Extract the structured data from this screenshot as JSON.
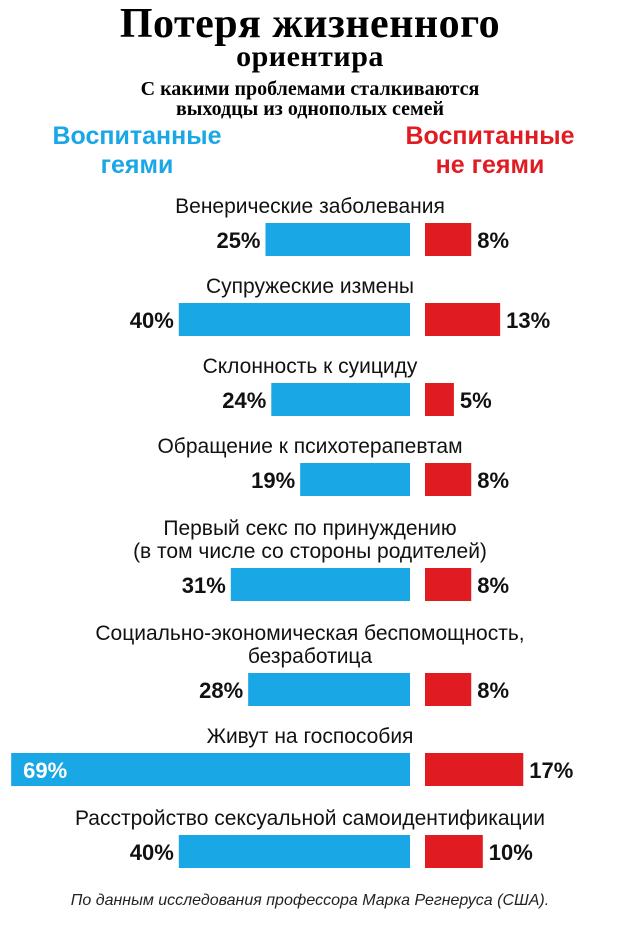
{
  "title": {
    "line1": "Потеря жизненного",
    "line2": "ориентира"
  },
  "subtitle": {
    "line1": "С какими проблемами сталкиваются",
    "line2": "выходцы из однополых семей"
  },
  "legend": {
    "left_line1": "Воспитанные",
    "left_line2": "геями",
    "right_line1": "Воспитанные",
    "right_line2": "не геями"
  },
  "colors": {
    "left_bar": "#1aa7e5",
    "right_bar": "#e11b22"
  },
  "source": "По данным исследования профессора Марка Регнеруса (США).",
  "chart_data": {
    "type": "bar",
    "orientation": "diverging-horizontal",
    "categories": [
      [
        "Венерические заболевания"
      ],
      [
        "Супружеские измены"
      ],
      [
        "Склонность к суициду"
      ],
      [
        "Обращение к психотерапевтам"
      ],
      [
        "Первый секс по принуждению",
        "(в том числе со стороны родителей)"
      ],
      [
        "Социально-экономическая беспомощность,",
        "безработица"
      ],
      [
        "Живут на госпособия"
      ],
      [
        "Расстройство сексуальной самоидентификации"
      ]
    ],
    "series": [
      {
        "name": "Воспитанные геями",
        "values": [
          25,
          40,
          24,
          19,
          31,
          28,
          69,
          40
        ],
        "labels": [
          "25%",
          "40%",
          "24%",
          "19%",
          "31%",
          "28%",
          "69%",
          "40%"
        ]
      },
      {
        "name": "Воспитанные не геями",
        "values": [
          8,
          13,
          5,
          8,
          8,
          8,
          17,
          10
        ],
        "labels": [
          "8%",
          "13%",
          "5%",
          "8%",
          "8%",
          "8%",
          "17%",
          "10%"
        ]
      }
    ],
    "unit": "%"
  }
}
